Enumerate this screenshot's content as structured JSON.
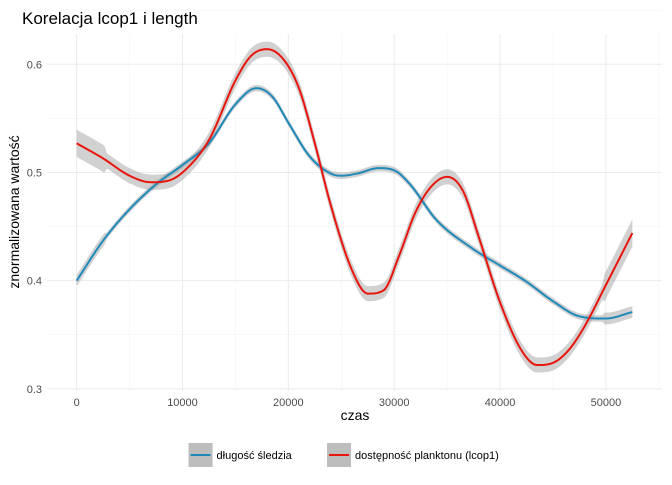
{
  "chart_data": {
    "type": "line",
    "title": "Korelacja lcop1 i length",
    "xlabel": "czas",
    "ylabel": "znormalizowana wartość",
    "xlim": [
      -2800,
      55300
    ],
    "ylim": [
      0.298,
      0.628
    ],
    "x_ticks": [
      0,
      10000,
      20000,
      30000,
      40000,
      50000
    ],
    "x_tick_labels": [
      "0",
      "10000",
      "20000",
      "30000",
      "40000",
      "50000"
    ],
    "y_ticks": [
      0.3,
      0.4,
      0.5,
      0.6
    ],
    "y_tick_labels": [
      "0.3",
      "0.4",
      "0.5",
      "0.6"
    ],
    "grid": true,
    "legend_position": "bottom",
    "series": [
      {
        "name": "długość śledzia",
        "color": "#1f8ab9",
        "ribbon_halfwidth": 0.003,
        "x": [
          0,
          2500,
          5000,
          7500,
          10000,
          12500,
          15000,
          17000,
          18500,
          20000,
          22000,
          24000,
          25000,
          26500,
          28500,
          30000,
          31500,
          34000,
          37500,
          40000,
          42500,
          45000,
          47500,
          50000,
          52500
        ],
        "y": [
          0.4,
          0.437,
          0.466,
          0.489,
          0.507,
          0.527,
          0.563,
          0.578,
          0.57,
          0.546,
          0.515,
          0.499,
          0.497,
          0.499,
          0.504,
          0.502,
          0.489,
          0.456,
          0.429,
          0.414,
          0.399,
          0.381,
          0.367,
          0.365,
          0.371
        ]
      },
      {
        "name": "dostępność planktonu (lcop1)",
        "color": "#e8150d",
        "ribbon_halfwidth": 0.007,
        "x": [
          0,
          2500,
          5000,
          7000,
          8500,
          10000,
          12500,
          15000,
          16500,
          18000,
          19500,
          21000,
          22500,
          24000,
          26000,
          27500,
          29000,
          30500,
          32000,
          33500,
          35000,
          36500,
          38000,
          40000,
          42000,
          43500,
          45000,
          46500,
          48000,
          50000,
          52500
        ],
        "y": [
          0.527,
          0.513,
          0.497,
          0.491,
          0.492,
          0.5,
          0.53,
          0.585,
          0.608,
          0.614,
          0.605,
          0.578,
          0.527,
          0.47,
          0.41,
          0.388,
          0.391,
          0.424,
          0.463,
          0.487,
          0.496,
          0.483,
          0.44,
          0.38,
          0.336,
          0.322,
          0.324,
          0.336,
          0.358,
          0.396,
          0.444
        ]
      }
    ]
  }
}
